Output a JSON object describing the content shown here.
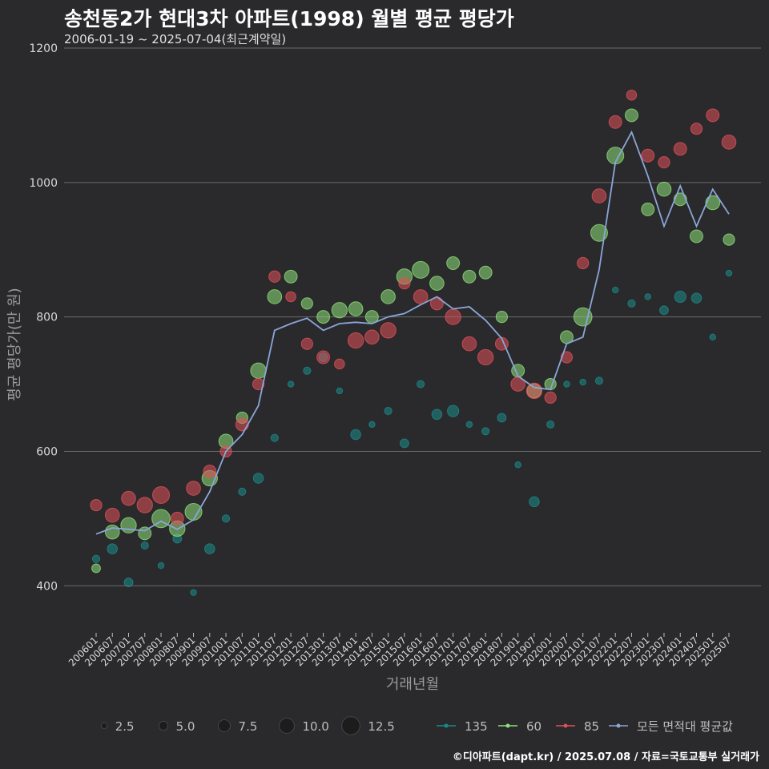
{
  "title": "송천동2가 현대3차 아파트(1998) 월별 평균 평당가",
  "subtitle": "2006-01-19 ~ 2025-07-04(최근계약일)",
  "caption": "©디아파트(dapt.kr) / 2025.07.08 / 자료=국토교통부 실거래가",
  "colors": {
    "background": "#2a2a2c",
    "grid": "#6a6a6a",
    "s135": "#1b8a8a",
    "s60": "#8ee07a",
    "s85": "#e0505a",
    "avg": "#8aa6d8"
  },
  "chart_data": {
    "type": "scatter",
    "xlabel": "거래년월",
    "ylabel": "평균 평당가(만 원)",
    "ylim": [
      330,
      1200
    ],
    "yticks": [
      400,
      600,
      800,
      1000,
      1200
    ],
    "x_range": [
      "2006-01",
      "2025-07"
    ],
    "xticks": [
      "200601",
      "200607",
      "200701",
      "200707",
      "200801",
      "200807",
      "200901",
      "200907",
      "201001",
      "201007",
      "201101",
      "201107",
      "201201",
      "201207",
      "201301",
      "201307",
      "201401",
      "201407",
      "201501",
      "201507",
      "201601",
      "201607",
      "201701",
      "201707",
      "201801",
      "201807",
      "201901",
      "201907",
      "202001",
      "202007",
      "202101",
      "202107",
      "202201",
      "202207",
      "202301",
      "202307",
      "202401",
      "202407",
      "202501",
      "202507"
    ],
    "grid": true,
    "legend": {
      "size_title": "",
      "sizes": [
        2.5,
        5.0,
        7.5,
        10.0,
        12.5
      ],
      "size_labels": [
        "2.5",
        "5.0",
        "7.5",
        "10.0",
        "12.5"
      ],
      "series_labels": [
        "135",
        "60",
        "85",
        "모든 면적대 평균값"
      ],
      "placement": "bottom"
    },
    "series": [
      {
        "name": "모든 면적대 평균값",
        "kind": "line",
        "key": "avg",
        "points": [
          [
            "2006-01",
            477
          ],
          [
            "2006-07",
            486
          ],
          [
            "2007-01",
            484
          ],
          [
            "2007-07",
            482
          ],
          [
            "2008-01",
            496
          ],
          [
            "2008-07",
            484
          ],
          [
            "2009-01",
            498
          ],
          [
            "2009-07",
            540
          ],
          [
            "2010-01",
            600
          ],
          [
            "2010-07",
            625
          ],
          [
            "2011-01",
            668
          ],
          [
            "2011-07",
            780
          ],
          [
            "2012-01",
            790
          ],
          [
            "2012-07",
            798
          ],
          [
            "2013-01",
            780
          ],
          [
            "2013-07",
            790
          ],
          [
            "2014-01",
            792
          ],
          [
            "2014-07",
            790
          ],
          [
            "2015-01",
            800
          ],
          [
            "2015-07",
            805
          ],
          [
            "2016-01",
            818
          ],
          [
            "2016-07",
            830
          ],
          [
            "2017-01",
            812
          ],
          [
            "2017-07",
            815
          ],
          [
            "2018-01",
            795
          ],
          [
            "2018-07",
            768
          ],
          [
            "2019-01",
            712
          ],
          [
            "2019-07",
            695
          ],
          [
            "2020-01",
            692
          ],
          [
            "2020-07",
            760
          ],
          [
            "2021-01",
            770
          ],
          [
            "2021-07",
            870
          ],
          [
            "2022-01",
            1030
          ],
          [
            "2022-07",
            1075
          ],
          [
            "2023-01",
            1010
          ],
          [
            "2023-07",
            935
          ],
          [
            "2024-01",
            995
          ],
          [
            "2024-07",
            935
          ],
          [
            "2025-01",
            990
          ],
          [
            "2025-07",
            953
          ]
        ]
      },
      {
        "name": "135",
        "kind": "scatter",
        "key": "s135",
        "points": [
          [
            "2006-01",
            440,
            3
          ],
          [
            "2006-07",
            455,
            5
          ],
          [
            "2007-01",
            405,
            4
          ],
          [
            "2007-07",
            460,
            3
          ],
          [
            "2008-01",
            430,
            2
          ],
          [
            "2008-07",
            470,
            4
          ],
          [
            "2009-01",
            390,
            2
          ],
          [
            "2009-07",
            455,
            5
          ],
          [
            "2010-01",
            500,
            3
          ],
          [
            "2010-07",
            540,
            3
          ],
          [
            "2011-01",
            560,
            5
          ],
          [
            "2011-07",
            620,
            3
          ],
          [
            "2012-01",
            700,
            2
          ],
          [
            "2012-07",
            720,
            3
          ],
          [
            "2013-01",
            740,
            4
          ],
          [
            "2013-07",
            690,
            2
          ],
          [
            "2014-01",
            625,
            5
          ],
          [
            "2014-07",
            640,
            2
          ],
          [
            "2015-01",
            660,
            3
          ],
          [
            "2015-07",
            612,
            4
          ],
          [
            "2016-01",
            700,
            3
          ],
          [
            "2016-07",
            655,
            5
          ],
          [
            "2017-01",
            660,
            6
          ],
          [
            "2017-07",
            640,
            2
          ],
          [
            "2018-01",
            630,
            3
          ],
          [
            "2018-07",
            650,
            4
          ],
          [
            "2019-01",
            580,
            2
          ],
          [
            "2019-07",
            525,
            5
          ],
          [
            "2020-01",
            640,
            3
          ],
          [
            "2020-07",
            700,
            2
          ],
          [
            "2021-01",
            703,
            2
          ],
          [
            "2021-07",
            705,
            3
          ],
          [
            "2022-01",
            840,
            2
          ],
          [
            "2022-07",
            820,
            3
          ],
          [
            "2023-01",
            830,
            2
          ],
          [
            "2023-07",
            810,
            4
          ],
          [
            "2024-01",
            830,
            6
          ],
          [
            "2024-07",
            828,
            5
          ],
          [
            "2025-01",
            770,
            2
          ],
          [
            "2025-07",
            865,
            2
          ]
        ]
      },
      {
        "name": "60",
        "kind": "scatter",
        "key": "s60",
        "points": [
          [
            "2006-01",
            426,
            4
          ],
          [
            "2006-07",
            480,
            8
          ],
          [
            "2007-01",
            490,
            9
          ],
          [
            "2007-07",
            478,
            7
          ],
          [
            "2008-01",
            500,
            11
          ],
          [
            "2008-07",
            485,
            9
          ],
          [
            "2009-01",
            510,
            10
          ],
          [
            "2009-07",
            560,
            9
          ],
          [
            "2010-01",
            615,
            8
          ],
          [
            "2010-07",
            650,
            6
          ],
          [
            "2011-01",
            720,
            9
          ],
          [
            "2011-07",
            830,
            8
          ],
          [
            "2012-01",
            860,
            7
          ],
          [
            "2012-07",
            820,
            6
          ],
          [
            "2013-01",
            800,
            7
          ],
          [
            "2013-07",
            810,
            9
          ],
          [
            "2014-01",
            812,
            8
          ],
          [
            "2014-07",
            800,
            7
          ],
          [
            "2015-01",
            830,
            8
          ],
          [
            "2015-07",
            860,
            9
          ],
          [
            "2016-01",
            870,
            10
          ],
          [
            "2016-07",
            850,
            8
          ],
          [
            "2017-01",
            880,
            7
          ],
          [
            "2017-07",
            860,
            7
          ],
          [
            "2018-01",
            866,
            7
          ],
          [
            "2018-07",
            800,
            6
          ],
          [
            "2019-01",
            720,
            7
          ],
          [
            "2019-07",
            690,
            8
          ],
          [
            "2020-01",
            700,
            6
          ],
          [
            "2020-07",
            770,
            7
          ],
          [
            "2021-01",
            800,
            11
          ],
          [
            "2021-07",
            925,
            10
          ],
          [
            "2022-01",
            1040,
            10
          ],
          [
            "2022-07",
            1100,
            7
          ],
          [
            "2023-01",
            960,
            7
          ],
          [
            "2023-07",
            990,
            8
          ],
          [
            "2024-01",
            975,
            7
          ],
          [
            "2024-07",
            920,
            7
          ],
          [
            "2025-01",
            970,
            8
          ],
          [
            "2025-07",
            915,
            6
          ]
        ]
      },
      {
        "name": "85",
        "kind": "scatter",
        "key": "s85",
        "points": [
          [
            "2006-01",
            520,
            6
          ],
          [
            "2006-07",
            505,
            8
          ],
          [
            "2007-01",
            530,
            8
          ],
          [
            "2007-07",
            520,
            9
          ],
          [
            "2008-01",
            535,
            10
          ],
          [
            "2008-07",
            500,
            7
          ],
          [
            "2009-01",
            545,
            8
          ],
          [
            "2009-07",
            570,
            7
          ],
          [
            "2010-01",
            600,
            6
          ],
          [
            "2010-07",
            640,
            7
          ],
          [
            "2011-01",
            700,
            6
          ],
          [
            "2011-07",
            860,
            6
          ],
          [
            "2012-01",
            830,
            5
          ],
          [
            "2012-07",
            760,
            6
          ],
          [
            "2013-01",
            740,
            7
          ],
          [
            "2013-07",
            730,
            5
          ],
          [
            "2014-01",
            765,
            9
          ],
          [
            "2014-07",
            770,
            8
          ],
          [
            "2015-01",
            780,
            9
          ],
          [
            "2015-07",
            850,
            6
          ],
          [
            "2016-01",
            830,
            8
          ],
          [
            "2016-07",
            820,
            7
          ],
          [
            "2017-01",
            800,
            9
          ],
          [
            "2017-07",
            760,
            8
          ],
          [
            "2018-01",
            740,
            9
          ],
          [
            "2018-07",
            760,
            7
          ],
          [
            "2019-01",
            700,
            8
          ],
          [
            "2019-07",
            690,
            9
          ],
          [
            "2020-01",
            680,
            6
          ],
          [
            "2020-07",
            740,
            6
          ],
          [
            "2021-01",
            880,
            6
          ],
          [
            "2021-07",
            980,
            8
          ],
          [
            "2022-01",
            1090,
            7
          ],
          [
            "2022-07",
            1130,
            5
          ],
          [
            "2023-01",
            1040,
            7
          ],
          [
            "2023-07",
            1030,
            6
          ],
          [
            "2024-01",
            1050,
            7
          ],
          [
            "2024-07",
            1080,
            6
          ],
          [
            "2025-01",
            1100,
            7
          ],
          [
            "2025-07",
            1060,
            8
          ]
        ]
      }
    ]
  }
}
